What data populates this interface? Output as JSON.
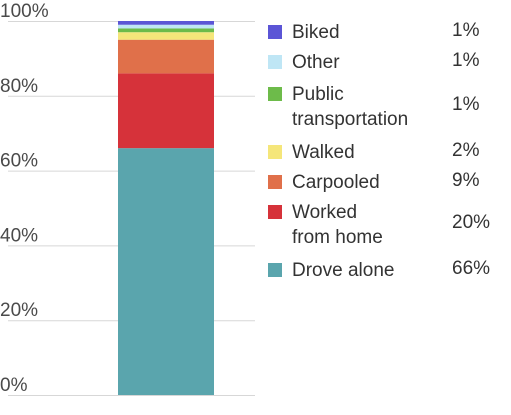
{
  "chart_data": {
    "type": "bar",
    "stacked": true,
    "ylim": [
      0,
      100
    ],
    "yticks": [
      "0%",
      "20%",
      "40%",
      "60%",
      "80%",
      "100%"
    ],
    "grid": true,
    "legend_position": "right",
    "series": [
      {
        "name": "Drove alone",
        "value": 66,
        "label": "66%",
        "color": "#5aa5ad"
      },
      {
        "name": "Worked\nfrom home",
        "value": 20,
        "label": "20%",
        "color": "#d6323a"
      },
      {
        "name": "Carpooled",
        "value": 9,
        "label": "9%",
        "color": "#e0704a"
      },
      {
        "name": "Walked",
        "value": 2,
        "label": "2%",
        "color": "#f5e67a"
      },
      {
        "name": "Public\ntransportation",
        "value": 1,
        "label": "1%",
        "color": "#6dbb4a"
      },
      {
        "name": "Other",
        "value": 1,
        "label": "1%",
        "color": "#bfe6f5"
      },
      {
        "name": "Biked",
        "value": 1,
        "label": "1%",
        "color": "#5b55d6"
      }
    ]
  }
}
